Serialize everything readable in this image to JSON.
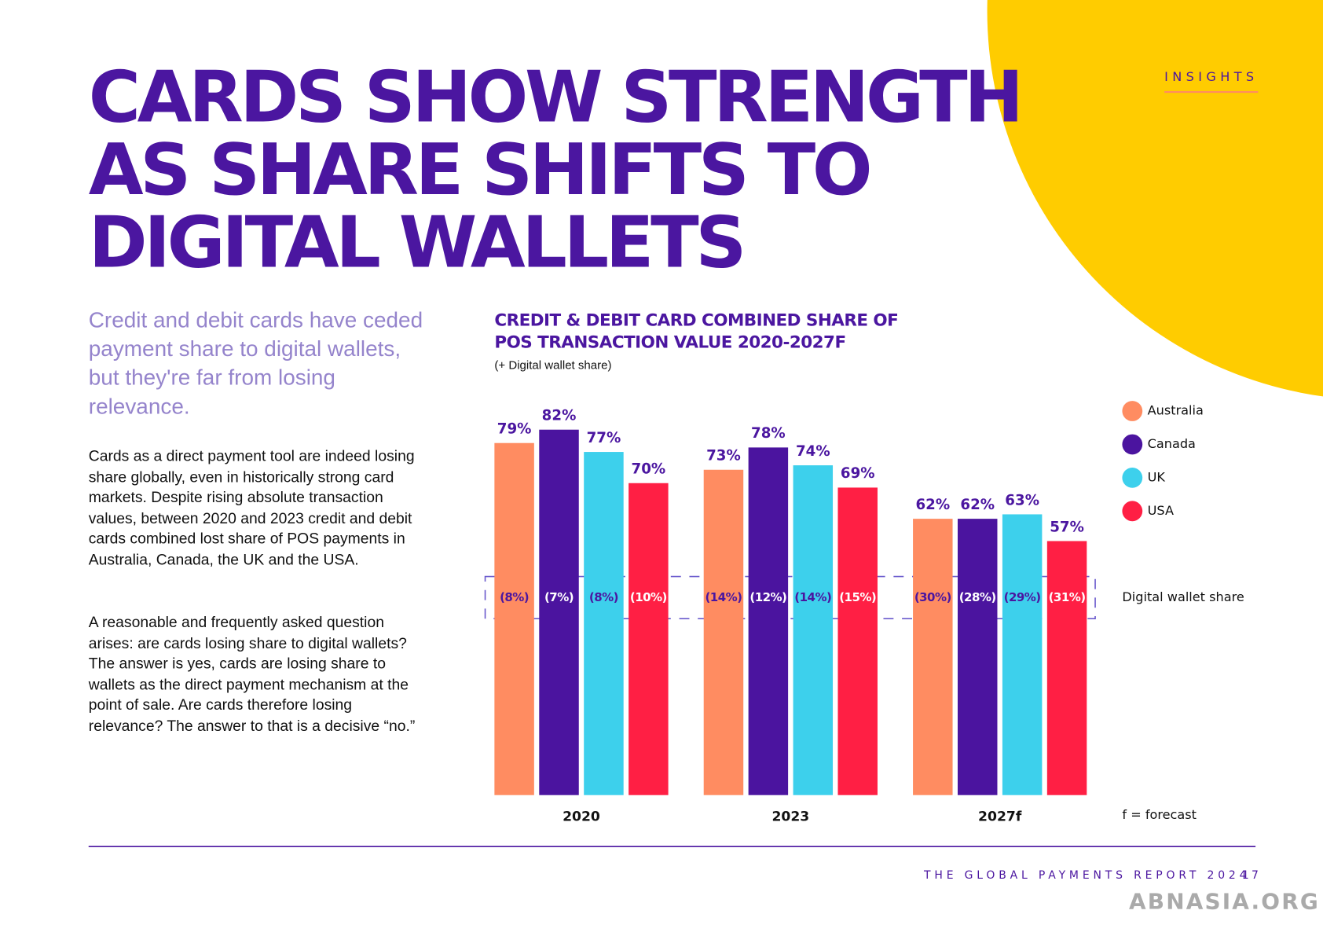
{
  "header": {
    "title": "CARDS SHOW STRENGTH AS SHARE SHIFTS TO DIGITAL WALLETS",
    "section": "INSIGHTS"
  },
  "intro": "Credit and debit cards have ceded payment share to digital wallets, but they're far from losing relevance.",
  "body": {
    "paragraphs": [
      "Cards as a direct payment tool are indeed losing share globally, even in historically strong card markets. Despite rising absolute transaction values, between 2020 and 2023 credit and debit cards combined lost share of POS payments in Australia, Canada, the UK and the USA.",
      "A reasonable and frequently asked question arises: are cards losing share to digital wallets? The answer is yes, cards are losing share to wallets as the direct payment mechanism at the point of sale. Are cards therefore losing relevance? The answer to that is a decisive “no.”"
    ]
  },
  "chart_data": {
    "type": "bar",
    "title": "CREDIT & DEBIT CARD COMBINED SHARE OF POS TRANSACTION VALUE 2020-2027F",
    "subtitle": "(+ Digital wallet share)",
    "categories": [
      "2020",
      "2023",
      "2027f"
    ],
    "series": [
      {
        "name": "Australia",
        "color": "#ff8c61",
        "values": [
          79,
          73,
          62
        ],
        "value_labels": [
          "79%",
          "73%",
          "62%"
        ],
        "wallet_share_labels": [
          "(8%)",
          "(14%)",
          "(30%)"
        ]
      },
      {
        "name": "Canada",
        "color": "#4b149f",
        "values": [
          82,
          78,
          62
        ],
        "value_labels": [
          "82%",
          "78%",
          "62%"
        ],
        "wallet_share_labels": [
          "(7%)",
          "(12%)",
          "(28%)"
        ]
      },
      {
        "name": "UK",
        "color": "#3dd0ec",
        "values": [
          77,
          74,
          63
        ],
        "value_labels": [
          "77%",
          "74%",
          "63%"
        ],
        "wallet_share_labels": [
          "(8%)",
          "(14%)",
          "(29%)"
        ]
      },
      {
        "name": "USA",
        "color": "#ff1f44",
        "values": [
          70,
          69,
          57
        ],
        "value_labels": [
          "70%",
          "69%",
          "57%"
        ],
        "wallet_share_labels": [
          "(10%)",
          "(15%)",
          "(31%)"
        ]
      }
    ],
    "wallet_label": "Digital wallet share",
    "note": "f = forecast"
  },
  "footer": {
    "report": "THE GLOBAL PAYMENTS REPORT 2024",
    "page": "17"
  },
  "watermark": "ABNASIA.ORG"
}
